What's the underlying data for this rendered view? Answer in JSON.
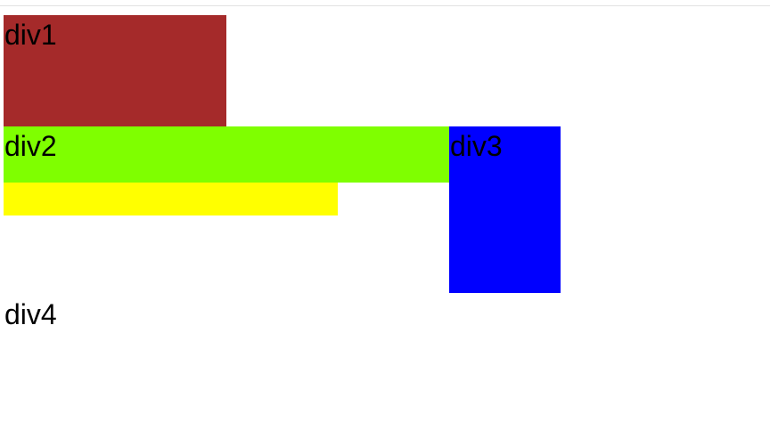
{
  "boxes": {
    "div1": {
      "label": "div1",
      "color": "#a52a2a"
    },
    "div2": {
      "label": "div2",
      "color": "#7fff00"
    },
    "div3": {
      "label": "div3",
      "color": "#0000ff"
    },
    "strip": {
      "color": "#ffff00"
    },
    "div4": {
      "label": "div4"
    }
  }
}
